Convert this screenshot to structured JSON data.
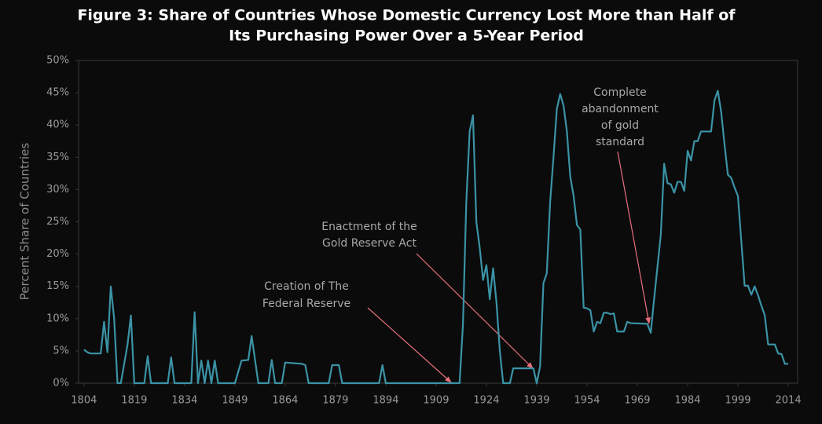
{
  "chart_data": {
    "type": "line",
    "title": [
      "Figure 3: Share of Countries Whose Domestic Currency Lost More than Half of",
      "Its Purchasing Power Over a 5-Year Period"
    ],
    "y_label": "Percent Share of Countries",
    "x": [
      1804,
      1805,
      1806,
      1807,
      1808,
      1809,
      1810,
      1811,
      1812,
      1813,
      1814,
      1815,
      1817,
      1818,
      1819,
      1822,
      1823,
      1824,
      1829,
      1830,
      1831,
      1836,
      1837,
      1838,
      1839,
      1840,
      1841,
      1842,
      1843,
      1844,
      1849,
      1851,
      1853,
      1854,
      1856,
      1859,
      1860,
      1861,
      1863,
      1864,
      1869,
      1870,
      1871,
      1877,
      1878,
      1880,
      1881,
      1892,
      1893,
      1894,
      1916,
      1917,
      1918,
      1919,
      1920,
      1921,
      1922,
      1923,
      1924,
      1925,
      1926,
      1927,
      1928,
      1929,
      1931,
      1932,
      1937,
      1938,
      1939,
      1940,
      1941,
      1942,
      1943,
      1944,
      1945,
      1946,
      1947,
      1948,
      1949,
      1950,
      1951,
      1952,
      1953,
      1954,
      1955,
      1956,
      1957,
      1958,
      1959,
      1960,
      1961,
      1962,
      1963,
      1964,
      1965,
      1966,
      1967,
      1972,
      1973,
      1974,
      1975,
      1976,
      1977,
      1978,
      1979,
      1980,
      1981,
      1982,
      1983,
      1984,
      1985,
      1986,
      1987,
      1988,
      1991,
      1992,
      1993,
      1994,
      1995,
      1996,
      1997,
      1998,
      1999,
      2000,
      2001,
      2002,
      2003,
      2004,
      2005,
      2006,
      2007,
      2008,
      2010,
      2011,
      2012,
      2013,
      2014
    ],
    "series": [
      {
        "name": "Share of countries",
        "color": "#3b93a6",
        "values": [
          5.2,
          4.8,
          4.6,
          4.6,
          4.6,
          4.6,
          9.5,
          4.8,
          15,
          10,
          0,
          0,
          6,
          10.5,
          0,
          0,
          4.2,
          0,
          0,
          4,
          0,
          0,
          11,
          0,
          3.5,
          0,
          3.5,
          0,
          3.5,
          0,
          0,
          3.5,
          3.6,
          7.3,
          0,
          0,
          3.6,
          0,
          0,
          3.2,
          3,
          2.8,
          0,
          0,
          2.8,
          2.8,
          0,
          0,
          2.8,
          0,
          0,
          9,
          28,
          39,
          41.5,
          25,
          21,
          16,
          18.3,
          13,
          17.8,
          12.5,
          5,
          0,
          0,
          2.3,
          2.3,
          2.3,
          0,
          2.6,
          15.5,
          17,
          28,
          35,
          42.5,
          44.8,
          43,
          39,
          32,
          29,
          24.5,
          23.8,
          11.7,
          11.6,
          11.3,
          8,
          9.5,
          9.3,
          10.9,
          10.9,
          10.7,
          10.8,
          8,
          8,
          8,
          9.5,
          9.3,
          9.2,
          7.8,
          13,
          18,
          23,
          34,
          31,
          30.8,
          29.5,
          31.2,
          31.2,
          29.8,
          36,
          34.5,
          37.5,
          37.5,
          39,
          39,
          43.8,
          45.3,
          42,
          37,
          32.3,
          31.8,
          30.3,
          29,
          22,
          15.1,
          15.1,
          13.7,
          15,
          13.6,
          12,
          10.5,
          6,
          6,
          4.6,
          4.5,
          3,
          3
        ]
      }
    ],
    "xlim": [
      1802.4,
      2016.8
    ],
    "ylim": [
      0,
      50
    ],
    "xticks": [
      1804,
      1819,
      1834,
      1849,
      1864,
      1879,
      1894,
      1909,
      1924,
      1939,
      1954,
      1969,
      1984,
      1999,
      2014
    ],
    "yticks": [
      {
        "value": 0,
        "label": "0%"
      },
      {
        "value": 5,
        "label": "5%"
      },
      {
        "value": 10,
        "label": "10%"
      },
      {
        "value": 15,
        "label": "15%"
      },
      {
        "value": 20,
        "label": "20%"
      },
      {
        "value": 25,
        "label": "25%"
      },
      {
        "value": 30,
        "label": "30%"
      },
      {
        "value": 35,
        "label": "35%"
      },
      {
        "value": 40,
        "label": "40%"
      },
      {
        "value": 45,
        "label": "45%"
      },
      {
        "value": 50,
        "label": "50%"
      }
    ],
    "grid": false,
    "annotations": [
      [
        "Creation of The",
        "Federal Reserve"
      ],
      [
        "Enactment of the",
        "Gold Reserve Act"
      ],
      [
        "Complete",
        "abandonment",
        "of gold",
        "standard"
      ]
    ]
  }
}
